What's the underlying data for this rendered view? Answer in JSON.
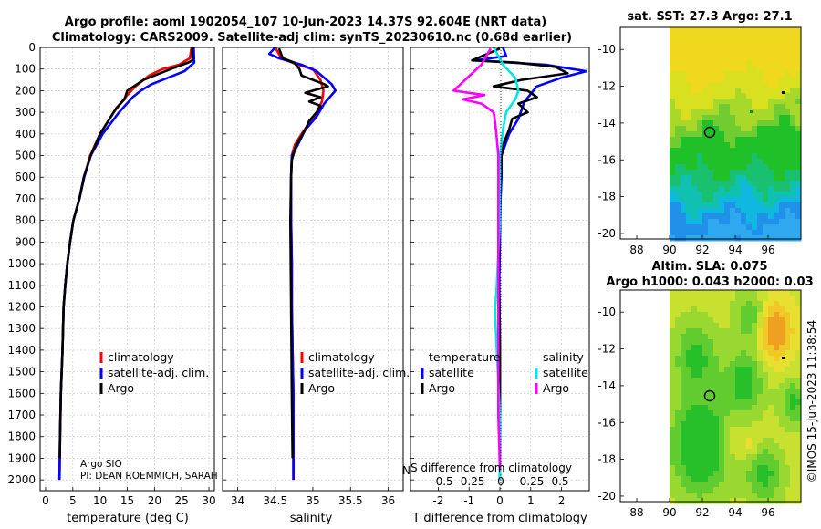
{
  "header": {
    "title_line1": "Argo profile: aoml 1902054_107 10-Jun-2023 14.37S 92.604E (NRT data)",
    "title_line2": "Climatology: CARS2009. Satellite-adj clim: synTS_20230610.nc (0.68d earlier)"
  },
  "credits": {
    "source": "Argo SIO",
    "pi": "PI: DEAN ROEMMICH, SARAH",
    "stamp": "©IMOS 15-Jun-2023 11:38:54",
    "overlap_fragment": "N",
    "overlap_label": "S difference from climatology",
    "overlap_ticks": [
      "-0.5",
      "-0.25",
      "0",
      "0.25",
      "0.5"
    ]
  },
  "colors": {
    "climatology": "#ff0000",
    "satellite": "#0000ff",
    "argo": "#000000",
    "sal_satellite": "#00e5e5",
    "sal_argo": "#ff00ff"
  },
  "chart_data": [
    {
      "type": "line",
      "id": "temperature",
      "xlabel": "temperature (deg C)",
      "ylabel": "",
      "xlim": [
        -1,
        31
      ],
      "ylim": [
        2050,
        0
      ],
      "xticks": [
        "0",
        "5",
        "10",
        "15",
        "20",
        "25",
        "30"
      ],
      "xtick_values": [
        0,
        5,
        10,
        15,
        20,
        25,
        30
      ],
      "yticks": [
        "0",
        "100",
        "200",
        "300",
        "400",
        "500",
        "600",
        "700",
        "800",
        "900",
        "1000",
        "1100",
        "1200",
        "1300",
        "1400",
        "1500",
        "1600",
        "1700",
        "1800",
        "1900",
        "2000"
      ],
      "ytick_values": [
        0,
        100,
        200,
        300,
        400,
        500,
        600,
        700,
        800,
        900,
        1000,
        1100,
        1200,
        1300,
        1400,
        1500,
        1600,
        1700,
        1800,
        1900,
        2000
      ],
      "grid": true,
      "legend": [
        "climatology",
        "satellite-adj. clim.",
        "Argo"
      ],
      "series": [
        {
          "name": "climatology",
          "color": "#ff0000",
          "x": [
            26.8,
            26.5,
            24.5,
            21.5,
            19.0,
            16.5,
            15.0,
            12.5,
            10.0,
            8.2,
            7.1,
            6.2,
            5.1,
            4.5,
            4.0,
            3.6,
            3.3,
            3.1,
            2.8,
            2.65,
            2.55
          ],
          "y": [
            0,
            50,
            80,
            100,
            130,
            180,
            220,
            300,
            400,
            500,
            600,
            700,
            800,
            900,
            1000,
            1100,
            1200,
            1400,
            1600,
            1800,
            2000
          ]
        },
        {
          "name": "satellite-adj. clim.",
          "color": "#0000ff",
          "x": [
            27.2,
            27.3,
            25.5,
            22.5,
            19.5,
            17.5,
            16.0,
            13.5,
            10.5,
            8.3,
            7.1,
            6.2,
            5.1,
            4.5,
            4.0,
            3.6,
            3.3,
            3.1,
            2.8,
            2.65,
            2.55
          ],
          "y": [
            0,
            70,
            110,
            140,
            170,
            200,
            230,
            300,
            400,
            500,
            600,
            700,
            800,
            900,
            1000,
            1100,
            1200,
            1400,
            1600,
            1800,
            2000
          ]
        },
        {
          "name": "Argo",
          "color": "#000000",
          "x": [
            26.9,
            27.0,
            26.2,
            23.0,
            20.0,
            18.0,
            15.0,
            14.5,
            13.0,
            12.0,
            10.0,
            8.3,
            7.0,
            6.2,
            5.1,
            4.5,
            4.0,
            3.6,
            3.3,
            3.1,
            2.8,
            2.6
          ],
          "y": [
            5,
            60,
            70,
            100,
            130,
            150,
            200,
            240,
            280,
            320,
            400,
            500,
            600,
            700,
            800,
            900,
            1000,
            1100,
            1200,
            1400,
            1600,
            1900
          ]
        }
      ]
    },
    {
      "type": "line",
      "id": "salinity",
      "xlabel": "salinity",
      "ylabel": "",
      "xlim": [
        33.8,
        36.2
      ],
      "ylim": [
        2050,
        0
      ],
      "xticks": [
        "34",
        "34.5",
        "35",
        "35.5",
        "36"
      ],
      "xtick_values": [
        34,
        34.5,
        35,
        35.5,
        36
      ],
      "grid": true,
      "legend": [
        "climatology",
        "satellite-adj. clim.",
        "Argo"
      ],
      "series": [
        {
          "name": "climatology",
          "color": "#ff0000",
          "x": [
            34.5,
            34.58,
            34.8,
            35.0,
            35.1,
            35.14,
            35.12,
            35.05,
            34.95,
            34.85,
            34.76,
            34.72,
            34.71,
            34.71,
            34.71,
            34.72,
            34.72,
            34.73,
            34.74,
            34.74
          ],
          "y": [
            0,
            50,
            80,
            100,
            150,
            200,
            250,
            300,
            350,
            400,
            450,
            500,
            600,
            700,
            800,
            1000,
            1200,
            1400,
            1600,
            2000
          ]
        },
        {
          "name": "satellite-adj. clim.",
          "color": "#0000ff",
          "x": [
            34.5,
            34.42,
            34.55,
            34.85,
            35.05,
            35.25,
            35.3,
            35.15,
            35.05,
            34.9,
            34.8,
            34.72,
            34.71,
            34.71,
            34.71,
            34.72,
            34.72,
            34.73,
            34.74,
            34.74
          ],
          "y": [
            0,
            30,
            50,
            80,
            110,
            170,
            200,
            260,
            320,
            380,
            450,
            500,
            600,
            700,
            800,
            1000,
            1200,
            1400,
            1600,
            2000
          ]
        },
        {
          "name": "Argo",
          "color": "#000000",
          "x": [
            34.55,
            34.6,
            34.75,
            34.82,
            34.85,
            35.0,
            35.15,
            35.2,
            35.0,
            34.9,
            35.1,
            34.95,
            35.1,
            35.05,
            34.95,
            34.9,
            34.78,
            34.72,
            34.71,
            34.7,
            34.71,
            34.72,
            34.73
          ],
          "y": [
            5,
            50,
            70,
            100,
            130,
            150,
            170,
            180,
            200,
            210,
            230,
            250,
            270,
            300,
            340,
            380,
            450,
            520,
            600,
            800,
            1200,
            1600,
            1900
          ]
        }
      ]
    },
    {
      "type": "line",
      "id": "difference",
      "xlabel": "T difference from climatology",
      "ylabel": "",
      "xlim": [
        -2.9,
        2.9
      ],
      "ylim": [
        2050,
        0
      ],
      "xticks": [
        "-2",
        "-1",
        "0",
        "1",
        "2"
      ],
      "xtick_values": [
        -2,
        -1,
        0,
        1,
        2
      ],
      "grid": true,
      "legend_left_title": "temperature",
      "legend_right_title": "salinity",
      "legend_left": [
        "satellite",
        "Argo"
      ],
      "legend_right": [
        "satellite",
        "Argo"
      ],
      "series": [
        {
          "name": "T satellite",
          "color": "#0000ff",
          "x": [
            0.1,
            0.2,
            -0.8,
            1.5,
            2.8,
            2.0,
            1.2,
            0.8,
            0.6,
            0.3,
            0.15,
            0.05,
            0.05,
            0.02,
            0.0,
            -0.02,
            0.0,
            0.0,
            0.0
          ],
          "y": [
            0,
            40,
            60,
            80,
            110,
            140,
            180,
            250,
            330,
            400,
            460,
            500,
            600,
            700,
            900,
            1100,
            1300,
            1600,
            2000
          ]
        },
        {
          "name": "T Argo",
          "color": "#000000",
          "x": [
            0.0,
            -0.9,
            0.5,
            1.8,
            2.2,
            0.7,
            -0.2,
            0.9,
            1.2,
            0.6,
            0.9,
            0.4,
            0.3,
            0.1,
            0.05,
            0.0,
            -0.05,
            0.0,
            0.0,
            0.0
          ],
          "y": [
            5,
            60,
            70,
            90,
            120,
            150,
            180,
            200,
            230,
            260,
            300,
            330,
            380,
            450,
            500,
            700,
            1000,
            1400,
            1700,
            1950
          ]
        },
        {
          "name": "S satellite",
          "color": "#00e5e5",
          "x": [
            -0.2,
            -0.05,
            0.1,
            0.5,
            0.6,
            0.5,
            0.2,
            0.1,
            0.0,
            0.0,
            -0.1,
            -0.15,
            -0.15,
            -0.1,
            0.0,
            0.0
          ],
          "y": [
            0,
            40,
            80,
            140,
            200,
            240,
            300,
            380,
            500,
            800,
            1100,
            1200,
            1250,
            1400,
            1700,
            2000
          ]
        },
        {
          "name": "S Argo",
          "color": "#ff00ff",
          "x": [
            -0.3,
            -0.6,
            -1.5,
            -0.5,
            -1.2,
            -0.6,
            -0.2,
            -0.15,
            -0.1,
            -0.05,
            -0.05,
            -0.05,
            -0.05,
            -0.05,
            0.0
          ],
          "y": [
            5,
            80,
            200,
            220,
            240,
            260,
            300,
            350,
            420,
            500,
            800,
            1100,
            1400,
            1700,
            1950
          ]
        }
      ]
    },
    {
      "type": "heatmap",
      "id": "sst_map",
      "title": "sat. SST: 27.3 Argo: 27.1",
      "xlim": [
        87,
        98
      ],
      "ylim": [
        -20.3,
        -8.8
      ],
      "xticks": [
        "88",
        "90",
        "92",
        "94",
        "96"
      ],
      "xtick_values": [
        88,
        90,
        92,
        94,
        96
      ],
      "yticks": [
        "-10",
        "-12",
        "-14",
        "-16",
        "-18",
        "-20"
      ],
      "ytick_values": [
        -10,
        -12,
        -14,
        -16,
        -18,
        -20
      ],
      "data_lon_range": [
        90,
        98
      ],
      "argo_position": [
        92.6,
        -14.37
      ]
    },
    {
      "type": "heatmap",
      "id": "sla_map",
      "title_line1": "Altim. SLA: 0.075",
      "title_line2": "Argo h1000: 0.043 h2000: 0.03",
      "xlim": [
        87,
        98
      ],
      "ylim": [
        -20.3,
        -8.8
      ],
      "xticks": [
        "88",
        "90",
        "92",
        "94",
        "96"
      ],
      "xtick_values": [
        88,
        90,
        92,
        94,
        96
      ],
      "yticks": [
        "-10",
        "-12",
        "-14",
        "-16",
        "-18",
        "-20"
      ],
      "ytick_values": [
        -10,
        -12,
        -14,
        -16,
        -18,
        -20
      ],
      "data_lon_range": [
        90,
        98
      ],
      "argo_position": [
        92.6,
        -14.37
      ]
    }
  ]
}
